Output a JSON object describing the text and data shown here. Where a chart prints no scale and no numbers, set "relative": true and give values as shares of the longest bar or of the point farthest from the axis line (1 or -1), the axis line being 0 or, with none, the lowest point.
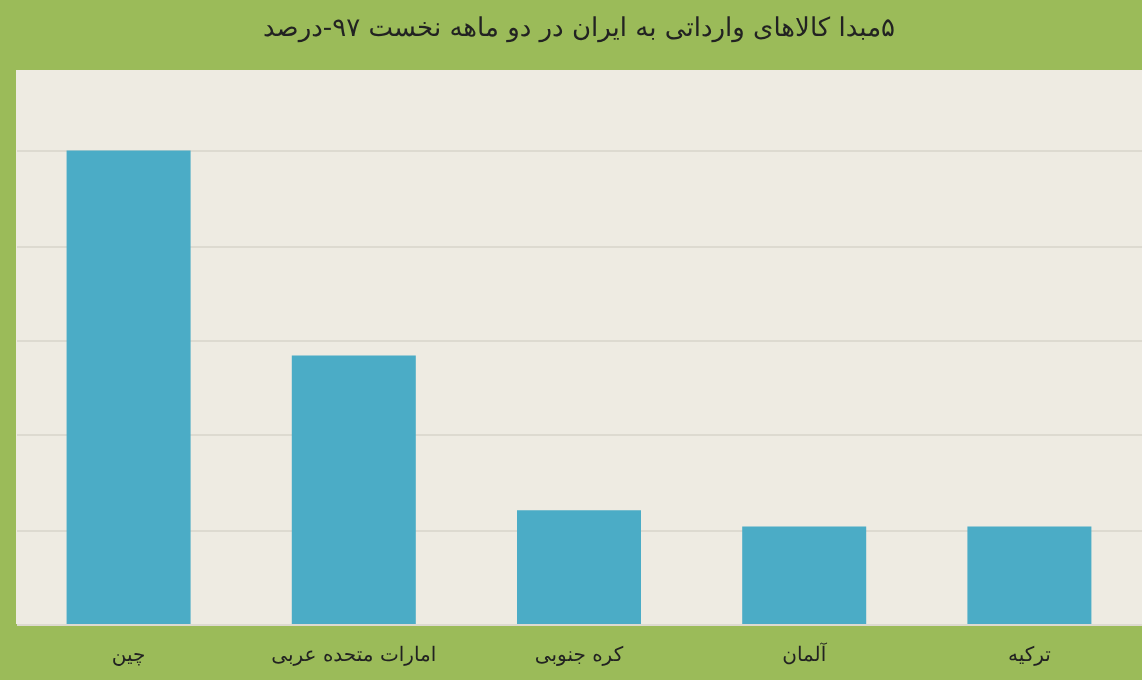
{
  "chart_data": {
    "type": "bar",
    "title": "۵مبدا کالاهای وارداتی به ایران در دو ماهه نخست ۹۷-درصد",
    "categories": [
      "چین",
      "امارات متحده عربی",
      "کره جنوبی",
      "آلمان",
      "ترکیه"
    ],
    "values": [
      1,
      0.567,
      0.24,
      0.206,
      0.206
    ],
    "color": "#4bacc6",
    "relative": true,
    "grid": "y"
  }
}
